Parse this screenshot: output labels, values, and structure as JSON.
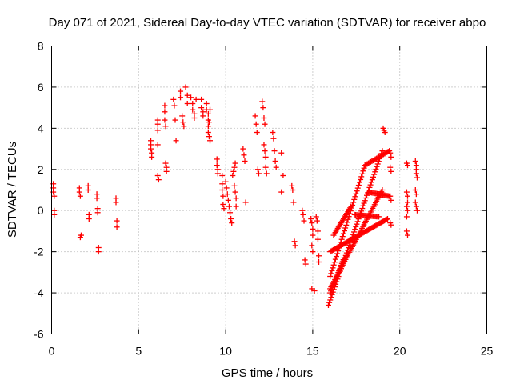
{
  "chart_data": {
    "type": "scatter",
    "title": "Day 071 of 2021, Sidereal Day-to-day VTEC variation (SDTVAR) for receiver abpo",
    "xlabel": "GPS time / hours",
    "ylabel": "SDTVAR / TECUs",
    "xlim": [
      0,
      25
    ],
    "ylim": [
      -6,
      8
    ],
    "xticks": [
      "0",
      "5",
      "10",
      "15",
      "20",
      "25"
    ],
    "yticks": [
      "-6",
      "-4",
      "-2",
      "0",
      "2",
      "4",
      "6",
      "8"
    ],
    "grid": true,
    "marker": "plus",
    "color": "#ff0000",
    "series": [
      {
        "name": "SDTVAR",
        "points": [
          [
            0.1,
            1.3
          ],
          [
            0.1,
            1.1
          ],
          [
            0.1,
            0.9
          ],
          [
            0.15,
            0.7
          ],
          [
            0.15,
            0.0
          ],
          [
            0.15,
            -0.2
          ],
          [
            1.6,
            1.1
          ],
          [
            1.6,
            0.9
          ],
          [
            1.65,
            0.7
          ],
          [
            1.7,
            -1.2
          ],
          [
            1.65,
            -1.3
          ],
          [
            2.1,
            1.2
          ],
          [
            2.1,
            1.0
          ],
          [
            2.15,
            -0.2
          ],
          [
            2.15,
            -0.4
          ],
          [
            2.6,
            0.8
          ],
          [
            2.6,
            0.6
          ],
          [
            2.65,
            0.1
          ],
          [
            2.65,
            -0.1
          ],
          [
            2.7,
            -1.8
          ],
          [
            2.7,
            -2.0
          ],
          [
            3.7,
            0.6
          ],
          [
            3.7,
            0.4
          ],
          [
            3.75,
            -0.5
          ],
          [
            3.75,
            -0.8
          ],
          [
            5.7,
            3.4
          ],
          [
            5.7,
            3.2
          ],
          [
            5.7,
            3.0
          ],
          [
            5.75,
            2.8
          ],
          [
            5.75,
            2.6
          ],
          [
            6.1,
            4.4
          ],
          [
            6.1,
            4.2
          ],
          [
            6.1,
            3.9
          ],
          [
            6.1,
            3.2
          ],
          [
            6.1,
            1.7
          ],
          [
            6.15,
            1.5
          ],
          [
            6.5,
            5.1
          ],
          [
            6.5,
            4.8
          ],
          [
            6.5,
            4.4
          ],
          [
            6.55,
            4.1
          ],
          [
            6.55,
            2.3
          ],
          [
            6.6,
            2.1
          ],
          [
            6.6,
            1.9
          ],
          [
            7.0,
            5.4
          ],
          [
            7.05,
            5.1
          ],
          [
            7.1,
            4.4
          ],
          [
            7.15,
            3.4
          ],
          [
            7.4,
            5.8
          ],
          [
            7.4,
            5.5
          ],
          [
            7.5,
            4.6
          ],
          [
            7.55,
            4.3
          ],
          [
            7.6,
            4.1
          ],
          [
            7.7,
            6.0
          ],
          [
            7.8,
            5.6
          ],
          [
            7.8,
            5.2
          ],
          [
            8.0,
            5.5
          ],
          [
            8.1,
            5.2
          ],
          [
            8.1,
            4.9
          ],
          [
            8.2,
            4.7
          ],
          [
            8.2,
            4.5
          ],
          [
            8.3,
            5.4
          ],
          [
            8.6,
            5.4
          ],
          [
            8.6,
            5.0
          ],
          [
            8.7,
            4.8
          ],
          [
            8.7,
            4.6
          ],
          [
            8.9,
            5.2
          ],
          [
            8.9,
            4.9
          ],
          [
            9.0,
            4.7
          ],
          [
            9.0,
            4.4
          ],
          [
            9.0,
            4.1
          ],
          [
            9.0,
            3.8
          ],
          [
            9.05,
            3.6
          ],
          [
            9.1,
            3.4
          ],
          [
            9.1,
            4.9
          ],
          [
            9.05,
            4.3
          ],
          [
            9.5,
            2.5
          ],
          [
            9.5,
            2.2
          ],
          [
            9.55,
            2.0
          ],
          [
            9.55,
            1.8
          ],
          [
            9.8,
            1.7
          ],
          [
            9.8,
            1.3
          ],
          [
            9.8,
            1.0
          ],
          [
            9.85,
            0.7
          ],
          [
            9.85,
            0.3
          ],
          [
            9.9,
            0.1
          ],
          [
            10.0,
            1.4
          ],
          [
            10.05,
            1.1
          ],
          [
            10.1,
            0.8
          ],
          [
            10.15,
            0.5
          ],
          [
            10.2,
            0.2
          ],
          [
            10.25,
            -0.1
          ],
          [
            10.3,
            -0.4
          ],
          [
            10.35,
            -0.6
          ],
          [
            10.4,
            1.7
          ],
          [
            10.45,
            1.9
          ],
          [
            10.5,
            2.1
          ],
          [
            10.55,
            2.3
          ],
          [
            10.5,
            1.2
          ],
          [
            10.55,
            0.9
          ],
          [
            10.6,
            0.6
          ],
          [
            10.6,
            0.2
          ],
          [
            11.0,
            3.0
          ],
          [
            11.05,
            2.7
          ],
          [
            11.1,
            2.4
          ],
          [
            11.15,
            0.4
          ],
          [
            11.7,
            4.6
          ],
          [
            11.75,
            4.2
          ],
          [
            11.8,
            3.8
          ],
          [
            11.85,
            2.0
          ],
          [
            11.9,
            1.8
          ],
          [
            12.1,
            5.3
          ],
          [
            12.15,
            5.0
          ],
          [
            12.2,
            4.5
          ],
          [
            12.25,
            4.2
          ],
          [
            12.2,
            3.2
          ],
          [
            12.25,
            2.9
          ],
          [
            12.3,
            2.6
          ],
          [
            12.3,
            2.1
          ],
          [
            12.35,
            1.8
          ],
          [
            12.7,
            3.8
          ],
          [
            12.75,
            3.5
          ],
          [
            12.8,
            2.9
          ],
          [
            12.85,
            2.4
          ],
          [
            12.9,
            2.1
          ],
          [
            13.2,
            2.8
          ],
          [
            13.3,
            1.7
          ],
          [
            13.2,
            0.9
          ],
          [
            13.8,
            1.2
          ],
          [
            13.85,
            1.0
          ],
          [
            13.9,
            0.4
          ],
          [
            13.95,
            -1.5
          ],
          [
            14.0,
            -1.7
          ],
          [
            14.4,
            0.0
          ],
          [
            14.45,
            -0.2
          ],
          [
            14.5,
            -0.5
          ],
          [
            14.55,
            -2.4
          ],
          [
            14.6,
            -2.6
          ],
          [
            14.9,
            -0.4
          ],
          [
            14.95,
            -0.6
          ],
          [
            15.0,
            -0.9
          ],
          [
            15.0,
            -1.2
          ],
          [
            14.95,
            -1.7
          ],
          [
            15.0,
            -2.0
          ],
          [
            14.95,
            -3.8
          ],
          [
            15.1,
            -3.9
          ],
          [
            15.2,
            -0.3
          ],
          [
            15.25,
            -0.5
          ],
          [
            15.3,
            -1.0
          ],
          [
            15.3,
            -1.4
          ],
          [
            15.35,
            -2.2
          ],
          [
            15.35,
            -2.5
          ],
          [
            19.05,
            4.0
          ],
          [
            19.1,
            3.9
          ],
          [
            19.15,
            3.8
          ],
          [
            19.45,
            2.8
          ],
          [
            19.5,
            2.6
          ],
          [
            19.45,
            2.1
          ],
          [
            19.5,
            1.9
          ],
          [
            19.45,
            0.7
          ],
          [
            19.5,
            0.5
          ],
          [
            19.45,
            -0.6
          ],
          [
            19.5,
            -0.7
          ],
          [
            20.4,
            2.3
          ],
          [
            20.45,
            2.2
          ],
          [
            20.4,
            0.9
          ],
          [
            20.45,
            0.7
          ],
          [
            20.45,
            0.4
          ],
          [
            20.4,
            0.2
          ],
          [
            20.45,
            0.0
          ],
          [
            20.4,
            -0.3
          ],
          [
            20.4,
            -1.0
          ],
          [
            20.45,
            -1.2
          ],
          [
            20.9,
            2.4
          ],
          [
            20.95,
            2.2
          ],
          [
            20.95,
            2.0
          ],
          [
            20.95,
            1.8
          ],
          [
            21.0,
            1.6
          ],
          [
            20.9,
            1.0
          ],
          [
            20.95,
            0.8
          ],
          [
            20.9,
            0.4
          ],
          [
            20.95,
            0.2
          ],
          [
            21.0,
            0.0
          ]
        ],
        "tracks": [
          {
            "from": [
              15.9,
              -4.6
            ],
            "to": [
              19.0,
              2.9
            ],
            "points": 60
          },
          {
            "from": [
              16.0,
              -3.8
            ],
            "to": [
              19.0,
              1.0
            ],
            "points": 55
          },
          {
            "from": [
              16.0,
              -3.2
            ],
            "to": [
              18.0,
              2.2
            ],
            "points": 40
          },
          {
            "from": [
              16.0,
              -2.0
            ],
            "to": [
              19.3,
              -0.4
            ],
            "points": 55
          },
          {
            "from": [
              16.2,
              -1.2
            ],
            "to": [
              17.2,
              0.2
            ],
            "points": 22
          },
          {
            "from": [
              18.0,
              2.2
            ],
            "to": [
              19.4,
              2.9
            ],
            "points": 22
          },
          {
            "from": [
              18.2,
              0.9
            ],
            "to": [
              19.4,
              0.7
            ],
            "points": 20
          },
          {
            "from": [
              17.4,
              -0.2
            ],
            "to": [
              18.8,
              -0.3
            ],
            "points": 22
          },
          {
            "from": [
              16.0,
              -4.0
            ],
            "to": [
              16.8,
              -2.3
            ],
            "points": 20
          }
        ]
      }
    ]
  }
}
